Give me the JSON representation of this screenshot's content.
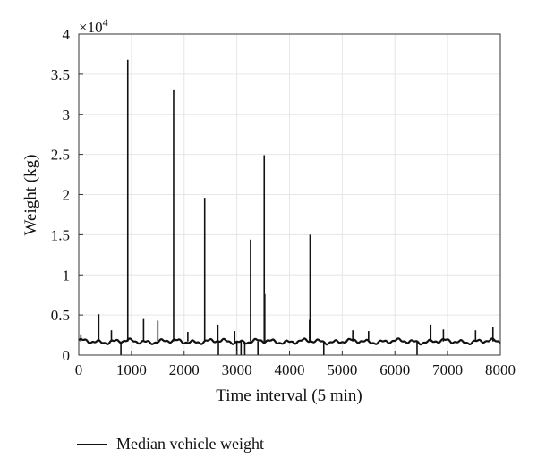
{
  "chart_data": {
    "type": "line",
    "title": "",
    "xlabel": "Time interval (5 min)",
    "ylabel": "Weight (kg)",
    "multiplier_label_base": "×10",
    "multiplier_label_exp": "4",
    "xlim": [
      0,
      8000
    ],
    "ylim": [
      0,
      40000
    ],
    "xticks": [
      "0",
      "1000",
      "2000",
      "3000",
      "4000",
      "5000",
      "6000",
      "7000",
      "8000"
    ],
    "yticks": [
      "0",
      "0.5",
      "1",
      "1.5",
      "2",
      "2.5",
      "3",
      "3.5",
      "4"
    ],
    "grid": true,
    "legend_position": "bottom-left",
    "colors": {
      "series": "#111111",
      "grid": "#e6e6e6",
      "axis": "#333333"
    },
    "series": [
      {
        "name": "Median vehicle weight",
        "baseline": 1700,
        "spikes": [
          {
            "x": 40,
            "y": 2600
          },
          {
            "x": 380,
            "y": 5100
          },
          {
            "x": 620,
            "y": 3100
          },
          {
            "x": 800,
            "y": 0
          },
          {
            "x": 930,
            "y": 36800
          },
          {
            "x": 1230,
            "y": 4500
          },
          {
            "x": 1500,
            "y": 4300
          },
          {
            "x": 1800,
            "y": 33000
          },
          {
            "x": 2070,
            "y": 2900
          },
          {
            "x": 2390,
            "y": 19600
          },
          {
            "x": 2640,
            "y": 3800
          },
          {
            "x": 2650,
            "y": 0
          },
          {
            "x": 2960,
            "y": 3000
          },
          {
            "x": 3000,
            "y": 0
          },
          {
            "x": 3080,
            "y": 0
          },
          {
            "x": 3150,
            "y": 0
          },
          {
            "x": 3260,
            "y": 14400
          },
          {
            "x": 3400,
            "y": 0
          },
          {
            "x": 3520,
            "y": 24900
          },
          {
            "x": 3530,
            "y": 7600
          },
          {
            "x": 4390,
            "y": 15000
          },
          {
            "x": 4380,
            "y": 4400
          },
          {
            "x": 4650,
            "y": 0
          },
          {
            "x": 5200,
            "y": 3100
          },
          {
            "x": 5500,
            "y": 3000
          },
          {
            "x": 6420,
            "y": 0
          },
          {
            "x": 6680,
            "y": 3800
          },
          {
            "x": 6920,
            "y": 3200
          },
          {
            "x": 7530,
            "y": 3100
          },
          {
            "x": 7860,
            "y": 3500
          }
        ]
      }
    ]
  }
}
